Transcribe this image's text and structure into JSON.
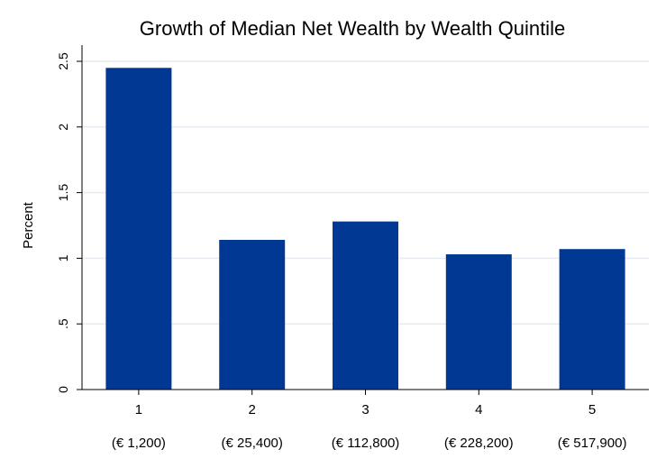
{
  "chart_data": {
    "type": "bar",
    "title": "Growth of Median Net Wealth by Wealth Quintile",
    "xlabel": "",
    "ylabel": "Percent",
    "ylim": [
      0,
      2.5
    ],
    "yticks": [
      0,
      0.5,
      1,
      1.5,
      2,
      2.5
    ],
    "ytick_labels": [
      "0",
      ".5",
      "1",
      "1.5",
      "2",
      "2.5"
    ],
    "categories": [
      "1",
      "2",
      "3",
      "4",
      "5"
    ],
    "category_sublabels": [
      "(€ 1,200)",
      "(€ 25,400)",
      "(€ 112,800)",
      "(€ 228,200)",
      "(€ 517,900)"
    ],
    "values": [
      2.45,
      1.14,
      1.28,
      1.03,
      1.07
    ],
    "grid": true,
    "bar_color": "#003893",
    "grid_color": "#e6ecf1"
  }
}
